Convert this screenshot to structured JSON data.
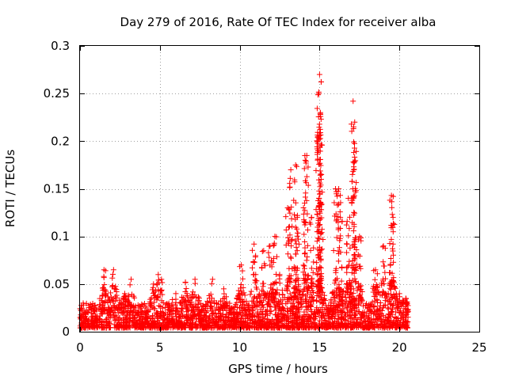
{
  "chart_data": {
    "type": "scatter",
    "title": "Day 279 of 2016, Rate Of TEC Index for receiver alba",
    "xlabel": "GPS time / hours",
    "ylabel": "ROTI / TECUs",
    "xlim": [
      0,
      25
    ],
    "ylim": [
      0,
      0.3
    ],
    "xticks": [
      0,
      5,
      10,
      15,
      20,
      25
    ],
    "xtick_labels": [
      "0",
      "5",
      "10",
      "15",
      "20",
      "25"
    ],
    "yticks": [
      0,
      0.05,
      0.1,
      0.15,
      0.2,
      0.25,
      0.3
    ],
    "ytick_labels": [
      "0",
      "0.05",
      "0.1",
      "0.15",
      "0.2",
      "0.25",
      "0.3"
    ],
    "grid": true,
    "marker": "+",
    "color": "#ff0000",
    "series": [
      {
        "name": "ROTI",
        "note": "dense point cloud (~0.005-0.04 TECU/s baseline) sampled from 0 to 20.5 h; listed points are representative peaks",
        "points": [
          [
            0.0,
            0.015
          ],
          [
            0.2,
            0.03
          ],
          [
            0.5,
            0.02
          ],
          [
            1.0,
            0.025
          ],
          [
            1.5,
            0.065
          ],
          [
            1.6,
            0.04
          ],
          [
            2.1,
            0.065
          ],
          [
            2.2,
            0.045
          ],
          [
            2.8,
            0.04
          ],
          [
            3.2,
            0.055
          ],
          [
            4.6,
            0.05
          ],
          [
            4.9,
            0.06
          ],
          [
            5.1,
            0.055
          ],
          [
            6.0,
            0.04
          ],
          [
            6.6,
            0.052
          ],
          [
            7.2,
            0.055
          ],
          [
            8.3,
            0.055
          ],
          [
            9.0,
            0.045
          ],
          [
            10.1,
            0.07
          ],
          [
            10.9,
            0.092
          ],
          [
            11.0,
            0.06
          ],
          [
            11.5,
            0.085
          ],
          [
            11.9,
            0.09
          ],
          [
            12.2,
            0.1
          ],
          [
            12.5,
            0.06
          ],
          [
            13.0,
            0.13
          ],
          [
            13.2,
            0.17
          ],
          [
            13.5,
            0.175
          ],
          [
            13.6,
            0.12
          ],
          [
            14.1,
            0.18
          ],
          [
            14.2,
            0.185
          ],
          [
            14.5,
            0.12
          ],
          [
            14.9,
            0.19
          ],
          [
            14.95,
            0.25
          ],
          [
            15.0,
            0.27
          ],
          [
            15.05,
            0.23
          ],
          [
            15.1,
            0.16
          ],
          [
            16.0,
            0.15
          ],
          [
            16.2,
            0.15
          ],
          [
            16.3,
            0.12
          ],
          [
            16.8,
            0.14
          ],
          [
            17.1,
            0.242
          ],
          [
            17.2,
            0.22
          ],
          [
            17.15,
            0.17
          ],
          [
            17.5,
            0.1
          ],
          [
            18.5,
            0.065
          ],
          [
            19.0,
            0.09
          ],
          [
            19.5,
            0.143
          ],
          [
            19.6,
            0.12
          ],
          [
            20.0,
            0.04
          ],
          [
            20.4,
            0.035
          ]
        ]
      }
    ]
  }
}
